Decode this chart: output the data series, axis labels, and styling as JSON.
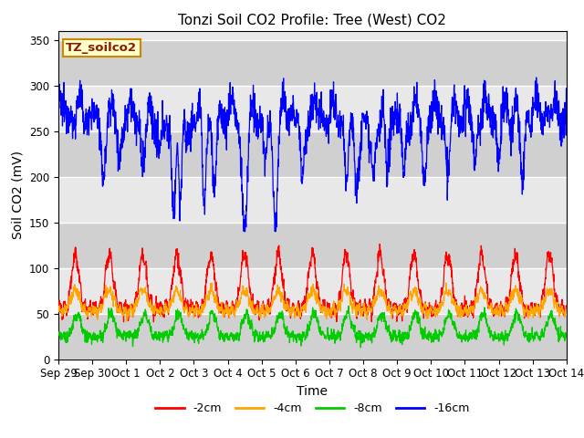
{
  "title": "Tonzi Soil CO2 Profile: Tree (West) CO2",
  "ylabel": "Soil CO2 (mV)",
  "xlabel": "Time",
  "legend_label": "TZ_soilco2",
  "series_labels": [
    "-2cm",
    "-4cm",
    "-8cm",
    "-16cm"
  ],
  "series_colors": [
    "#ff0000",
    "#ffa500",
    "#00cc00",
    "#0000ff"
  ],
  "ylim": [
    0,
    360
  ],
  "yticks": [
    0,
    50,
    100,
    150,
    200,
    250,
    300,
    350
  ],
  "n_points": 2000,
  "title_fontsize": 11,
  "axis_fontsize": 10,
  "tick_fontsize": 8.5,
  "legend_fontsize": 9,
  "line_width": 0.9,
  "grid_color": "#d8d8d8",
  "plot_bg": "#e8e8e8"
}
